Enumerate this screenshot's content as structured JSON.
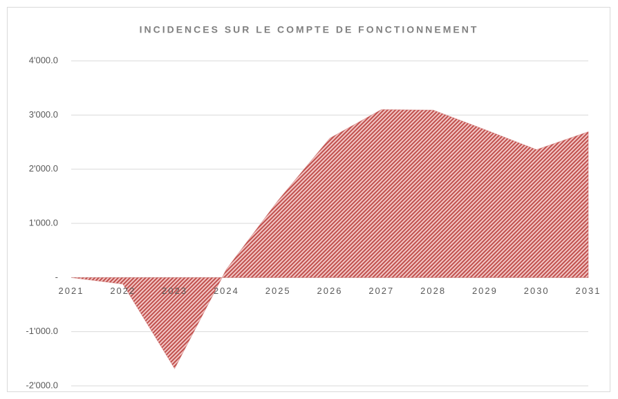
{
  "chart_data": {
    "type": "area",
    "title": "INCIDENCES SUR LE COMPTE DE FONCTIONNEMENT",
    "categories": [
      "2021",
      "2022",
      "2023",
      "2024",
      "2025",
      "2026",
      "2027",
      "2028",
      "2029",
      "2030",
      "2031"
    ],
    "series": [
      {
        "color": "#c0504d",
        "values": [
          0,
          -120,
          -1680,
          150,
          1420,
          2570,
          3100,
          3090,
          2730,
          2360,
          2690
        ]
      }
    ],
    "ylim": [
      -2000,
      4000
    ],
    "yticks": [
      {
        "value": -2000,
        "label": "-2'000.0"
      },
      {
        "value": -1000,
        "label": "-1'000.0"
      },
      {
        "value": 0,
        "label": "-"
      },
      {
        "value": 1000,
        "label": "1'000.0"
      },
      {
        "value": 2000,
        "label": "2'000.0"
      },
      {
        "value": 3000,
        "label": "3'000.0"
      },
      {
        "value": 4000,
        "label": "4'000.0"
      }
    ],
    "grid": true
  }
}
